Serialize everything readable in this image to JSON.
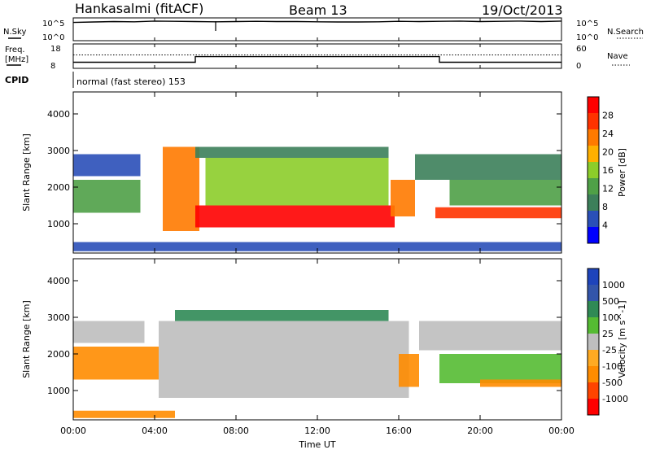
{
  "header": {
    "station": "Hankasalmi (fitACF)",
    "beam": "Beam 13",
    "date": "19/Oct/2013"
  },
  "top_panels": {
    "nsky_label": "N.Sky",
    "nsearch_label": "N.Search",
    "log_labels": [
      "10^5",
      "10^0"
    ],
    "freq_label": "Freq.",
    "freq_unit": "[MHz]",
    "freq_ticks": [
      "18",
      "8"
    ],
    "nave_label": "Nave",
    "nave_ticks": [
      "60",
      "0"
    ],
    "cpid_label": "CPID",
    "cpid_text": "normal (fast stereo) 153",
    "nsky_values": [
      0.8,
      0.82,
      0.84,
      0.83,
      0.86,
      0.85,
      0.84,
      0.83,
      0.84,
      0.85,
      0.84,
      0.84,
      0.83,
      0.82,
      0.82,
      0.83,
      0.85,
      0.84,
      0.85,
      0.86,
      0.84,
      0.85,
      0.86,
      0.84,
      0.86
    ],
    "nsky_spike_hour": 7.0,
    "freq_mhz_segments": [
      {
        "start": 0,
        "end": 6,
        "value": 10.5
      },
      {
        "start": 6,
        "end": 18,
        "value": 12.8
      },
      {
        "start": 18,
        "end": 24,
        "value": 10.5
      }
    ],
    "nave_level": 33
  },
  "colors": {
    "power": [
      "#0000ff",
      "#2a4fb8",
      "#3c7f5a",
      "#4fa047",
      "#8ccd2a",
      "#ffb000",
      "#ff7a00",
      "#ff3300",
      "#ff0000"
    ],
    "velocity": [
      "#ff0000",
      "#ff4400",
      "#ff8c00",
      "#ffaa22",
      "#bebebe",
      "#bebebe",
      "#55bb33",
      "#2f8a55",
      "#3355aa",
      "#1e44bb"
    ],
    "white": "#ffffff"
  },
  "chart_data": [
    {
      "type": "heatmap",
      "title": "",
      "xlabel": "",
      "ylabel": "Slant Range [km]",
      "xlim": [
        0,
        24
      ],
      "ylim": [
        200,
        4600
      ],
      "x_ticks": [
        "00:00",
        "04:00",
        "08:00",
        "12:00",
        "16:00",
        "20:00",
        "00:00"
      ],
      "y_ticks": [
        1000,
        2000,
        3000,
        4000
      ],
      "colorbar": {
        "label": "Power [dB]",
        "ticks": [
          4,
          8,
          12,
          16,
          20,
          24,
          28
        ],
        "range": [
          0,
          32
        ]
      },
      "regions": [
        {
          "start": 0.0,
          "end": 3.3,
          "rlow": 1300,
          "rhigh": 2200,
          "value": 14
        },
        {
          "start": 0.0,
          "end": 3.3,
          "rlow": 2300,
          "rhigh": 2900,
          "value": 7
        },
        {
          "start": 4.4,
          "end": 6.2,
          "rlow": 800,
          "rhigh": 3100,
          "value": 22
        },
        {
          "start": 6.0,
          "end": 15.8,
          "rlow": 900,
          "rhigh": 1500,
          "value": 29
        },
        {
          "start": 6.5,
          "end": 15.5,
          "rlow": 1500,
          "rhigh": 2800,
          "value": 16
        },
        {
          "start": 6.0,
          "end": 15.5,
          "rlow": 2800,
          "rhigh": 3100,
          "value": 10
        },
        {
          "start": 15.6,
          "end": 16.8,
          "rlow": 1200,
          "rhigh": 2200,
          "value": 22
        },
        {
          "start": 16.8,
          "end": 24.0,
          "rlow": 2200,
          "rhigh": 2900,
          "value": 9
        },
        {
          "start": 17.8,
          "end": 24.0,
          "rlow": 1150,
          "rhigh": 1450,
          "value": 28
        },
        {
          "start": 18.5,
          "end": 24.0,
          "rlow": 1500,
          "rhigh": 2200,
          "value": 13
        },
        {
          "start": 0.0,
          "end": 24.0,
          "rlow": 250,
          "rhigh": 500,
          "value": 6
        }
      ]
    },
    {
      "type": "heatmap",
      "title": "",
      "xlabel": "Time UT",
      "ylabel": "Slant Range [km]",
      "xlim": [
        0,
        24
      ],
      "ylim": [
        200,
        4600
      ],
      "x_ticks": [
        "00:00",
        "04:00",
        "08:00",
        "12:00",
        "16:00",
        "20:00",
        "00:00"
      ],
      "y_ticks": [
        1000,
        2000,
        3000,
        4000
      ],
      "colorbar": {
        "label": "Velocity [m s^-1]",
        "ticks": [
          "1000",
          "500",
          "100",
          "25",
          "-25",
          "-100",
          "-500",
          "-1000"
        ]
      },
      "regions": [
        {
          "start": 0.0,
          "end": 4.2,
          "rlow": 1300,
          "rhigh": 2200,
          "value": -150
        },
        {
          "start": 0.0,
          "end": 3.5,
          "rlow": 2300,
          "rhigh": 2900,
          "value": 0
        },
        {
          "start": 4.2,
          "end": 16.5,
          "rlow": 800,
          "rhigh": 2900,
          "value": 0
        },
        {
          "start": 5.0,
          "end": 15.5,
          "rlow": 2900,
          "rhigh": 3200,
          "value": 150
        },
        {
          "start": 16.0,
          "end": 17.0,
          "rlow": 1100,
          "rhigh": 2000,
          "value": -300
        },
        {
          "start": 17.0,
          "end": 24.0,
          "rlow": 2100,
          "rhigh": 2900,
          "value": 0
        },
        {
          "start": 18.0,
          "end": 24.0,
          "rlow": 1200,
          "rhigh": 2000,
          "value": 60
        },
        {
          "start": 20.0,
          "end": 24.0,
          "rlow": 1100,
          "rhigh": 1300,
          "value": -150
        },
        {
          "start": 0.0,
          "end": 5.0,
          "rlow": 250,
          "rhigh": 450,
          "value": -120
        }
      ]
    }
  ]
}
